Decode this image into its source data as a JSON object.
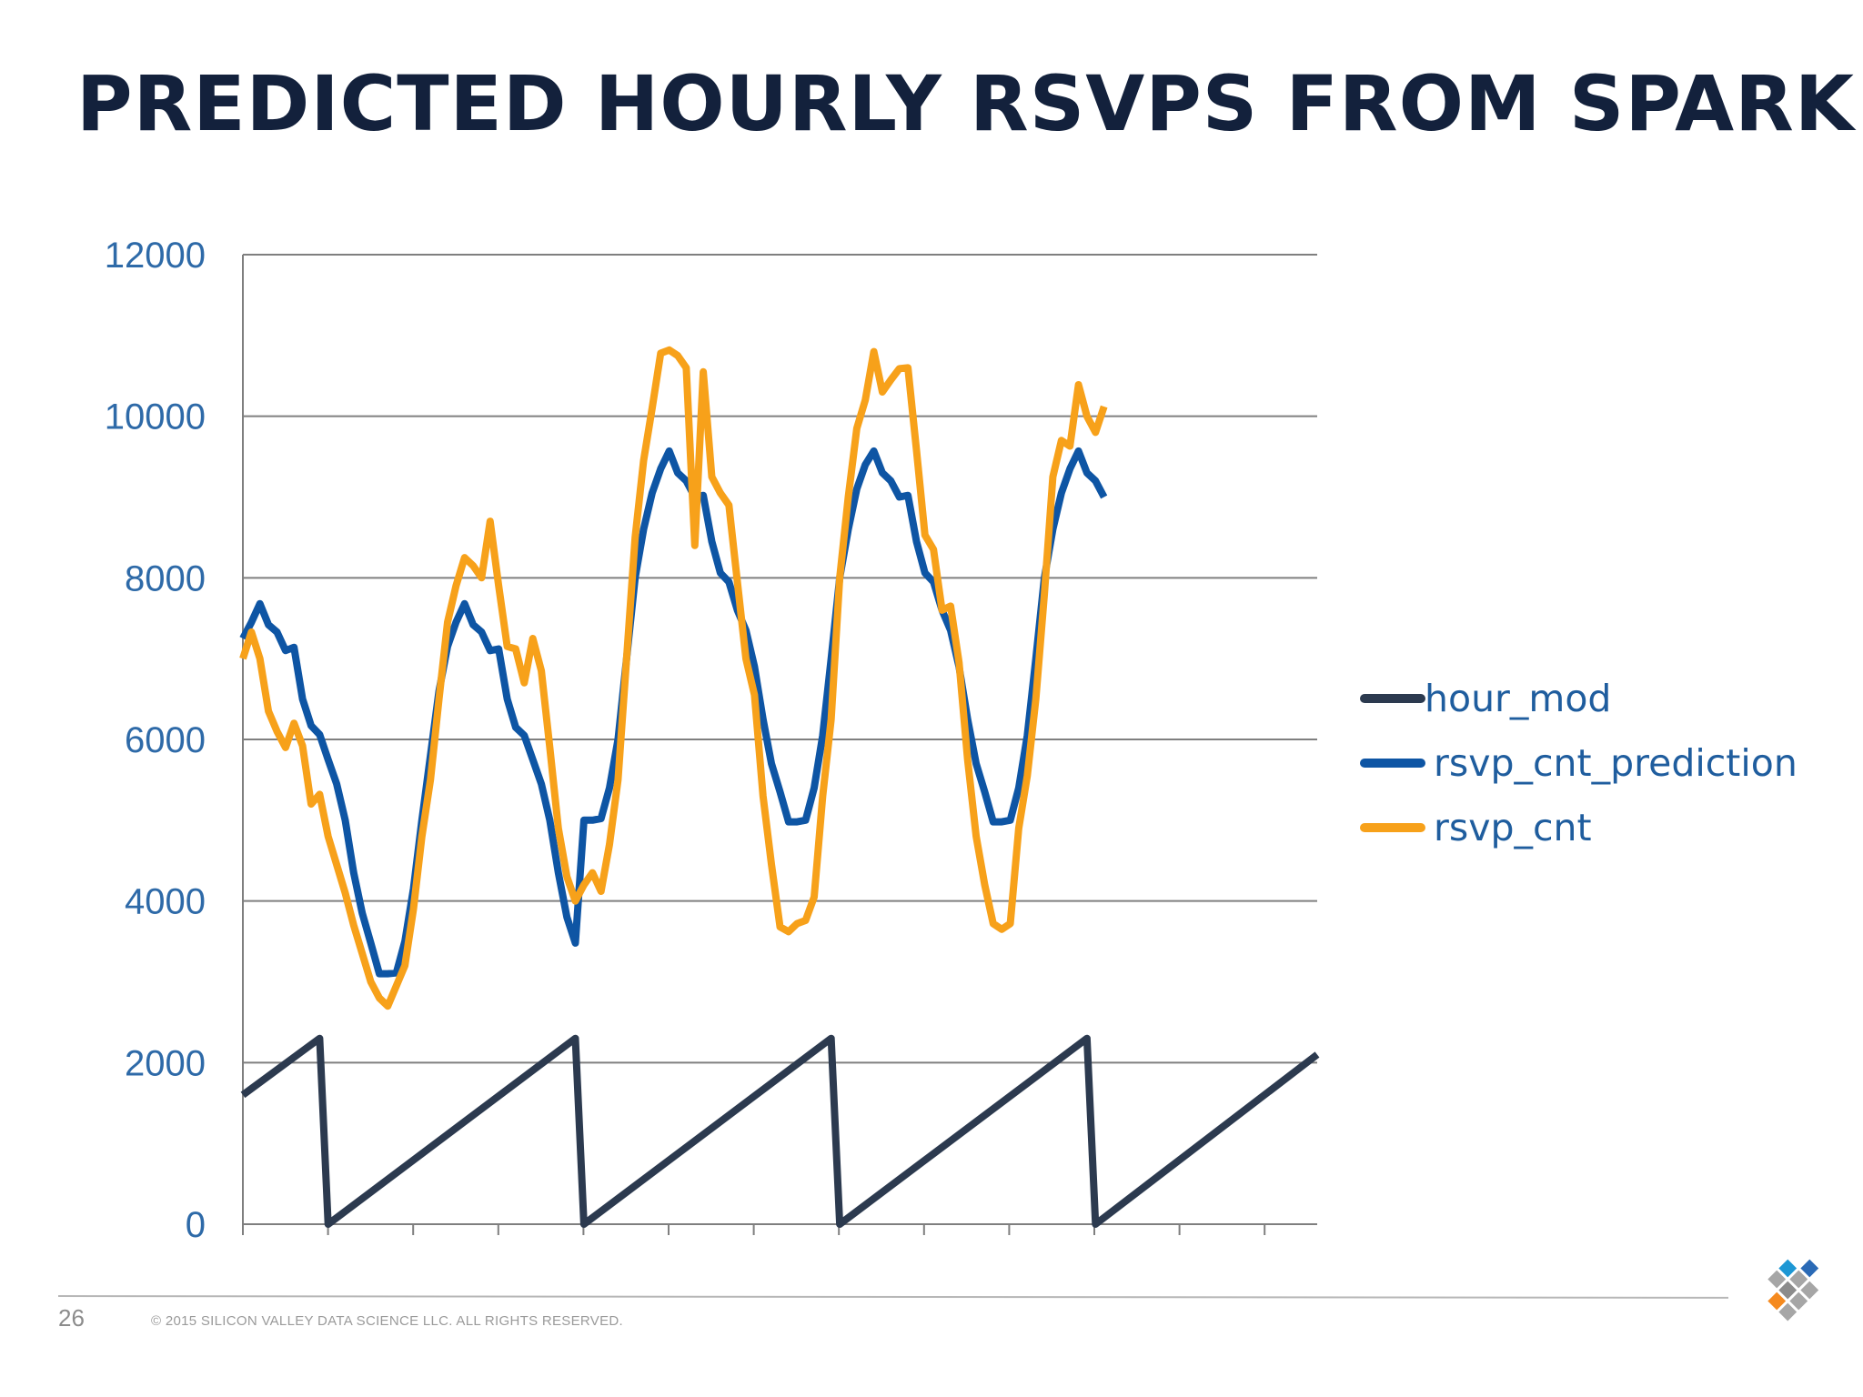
{
  "slide": {
    "title": "PREDICTED HOURLY RSVPS FROM SPARK",
    "page_number": "26",
    "copyright": "© 2015 SILICON VALLEY DATA SCIENCE LLC. ALL RIGHTS RESERVED.",
    "logo_icon": "svds-diamond-logo-icon"
  },
  "chart_data": {
    "type": "line",
    "title": "",
    "xlabel": "",
    "ylabel": "",
    "ylim": [
      0,
      12000
    ],
    "yticks": [
      "0",
      "2000",
      "4000",
      "6000",
      "8000",
      "10000",
      "12000"
    ],
    "xlim": [
      0,
      126
    ],
    "xtick_count": 13,
    "grid": "horizontal",
    "legend_position": "right",
    "series": [
      {
        "name": "hour_mod",
        "color": "#2c3a4f",
        "points": [
          [
            0,
            1600
          ],
          [
            9,
            2300
          ],
          [
            10,
            0
          ],
          [
            39,
            2300
          ],
          [
            40,
            0
          ],
          [
            69,
            2300
          ],
          [
            70,
            0
          ],
          [
            99,
            2300
          ],
          [
            100,
            0
          ],
          [
            126,
            2100
          ]
        ]
      },
      {
        "name": "rsvp_cnt_prediction",
        "color": "#0e55a4",
        "points": [
          [
            0,
            7250
          ],
          [
            1,
            7450
          ],
          [
            2,
            7680
          ],
          [
            3,
            7420
          ],
          [
            4,
            7330
          ],
          [
            5,
            7100
          ],
          [
            6,
            7140
          ],
          [
            7,
            6500
          ],
          [
            8,
            6170
          ],
          [
            9,
            6060
          ],
          [
            10,
            5750
          ],
          [
            11,
            5450
          ],
          [
            12,
            5000
          ],
          [
            13,
            4350
          ],
          [
            14,
            3850
          ],
          [
            15,
            3480
          ],
          [
            16,
            3100
          ],
          [
            17,
            3100
          ],
          [
            18,
            3110
          ],
          [
            19,
            3500
          ],
          [
            20,
            4150
          ],
          [
            21,
            5000
          ],
          [
            22,
            5800
          ],
          [
            23,
            6600
          ],
          [
            24,
            7150
          ],
          [
            25,
            7450
          ],
          [
            26,
            7680
          ],
          [
            27,
            7420
          ],
          [
            28,
            7330
          ],
          [
            29,
            7100
          ],
          [
            30,
            7120
          ],
          [
            31,
            6500
          ],
          [
            32,
            6150
          ],
          [
            33,
            6050
          ],
          [
            34,
            5750
          ],
          [
            35,
            5450
          ],
          [
            36,
            5000
          ],
          [
            37,
            4350
          ],
          [
            38,
            3800
          ],
          [
            39,
            3480
          ],
          [
            40,
            5000
          ],
          [
            41,
            5000
          ],
          [
            42,
            5020
          ],
          [
            43,
            5400
          ],
          [
            44,
            6000
          ],
          [
            45,
            7000
          ],
          [
            46,
            8000
          ],
          [
            47,
            8600
          ],
          [
            48,
            9050
          ],
          [
            49,
            9350
          ],
          [
            50,
            9570
          ],
          [
            51,
            9300
          ],
          [
            52,
            9200
          ],
          [
            53,
            9000
          ],
          [
            54,
            9020
          ],
          [
            55,
            8450
          ],
          [
            56,
            8060
          ],
          [
            57,
            7950
          ],
          [
            58,
            7600
          ],
          [
            59,
            7350
          ],
          [
            60,
            6900
          ],
          [
            61,
            6250
          ],
          [
            62,
            5700
          ],
          [
            63,
            5350
          ],
          [
            64,
            4980
          ],
          [
            65,
            4980
          ],
          [
            66,
            5000
          ],
          [
            67,
            5400
          ],
          [
            68,
            6050
          ],
          [
            69,
            7000
          ],
          [
            70,
            8000
          ],
          [
            71,
            8600
          ],
          [
            72,
            9100
          ],
          [
            73,
            9400
          ],
          [
            74,
            9570
          ],
          [
            75,
            9300
          ],
          [
            76,
            9200
          ],
          [
            77,
            9000
          ],
          [
            78,
            9020
          ],
          [
            79,
            8450
          ],
          [
            80,
            8060
          ],
          [
            81,
            7950
          ],
          [
            82,
            7600
          ],
          [
            83,
            7350
          ],
          [
            84,
            6900
          ],
          [
            85,
            6250
          ],
          [
            86,
            5700
          ],
          [
            87,
            5350
          ],
          [
            88,
            4980
          ],
          [
            89,
            4980
          ],
          [
            90,
            5000
          ],
          [
            91,
            5400
          ],
          [
            92,
            6050
          ],
          [
            93,
            7000
          ],
          [
            94,
            8000
          ],
          [
            95,
            8600
          ],
          [
            96,
            9050
          ],
          [
            97,
            9350
          ],
          [
            98,
            9570
          ],
          [
            99,
            9300
          ],
          [
            100,
            9200
          ],
          [
            101,
            9000
          ]
        ]
      },
      {
        "name": "rsvp_cnt",
        "color": "#f7a11a",
        "points": [
          [
            0,
            7000
          ],
          [
            1,
            7330
          ],
          [
            2,
            7000
          ],
          [
            3,
            6350
          ],
          [
            4,
            6100
          ],
          [
            5,
            5900
          ],
          [
            6,
            6200
          ],
          [
            7,
            5920
          ],
          [
            8,
            5200
          ],
          [
            9,
            5320
          ],
          [
            10,
            4800
          ],
          [
            11,
            4450
          ],
          [
            12,
            4100
          ],
          [
            13,
            3700
          ],
          [
            14,
            3350
          ],
          [
            15,
            3000
          ],
          [
            16,
            2800
          ],
          [
            17,
            2700
          ],
          [
            18,
            2950
          ],
          [
            19,
            3200
          ],
          [
            20,
            3900
          ],
          [
            21,
            4800
          ],
          [
            22,
            5500
          ],
          [
            23,
            6500
          ],
          [
            24,
            7450
          ],
          [
            25,
            7900
          ],
          [
            26,
            8250
          ],
          [
            27,
            8150
          ],
          [
            28,
            8000
          ],
          [
            29,
            8700
          ],
          [
            30,
            7900
          ],
          [
            31,
            7150
          ],
          [
            32,
            7120
          ],
          [
            33,
            6700
          ],
          [
            34,
            7250
          ],
          [
            35,
            6850
          ],
          [
            36,
            5900
          ],
          [
            37,
            4900
          ],
          [
            38,
            4300
          ],
          [
            39,
            4000
          ],
          [
            40,
            4200
          ],
          [
            41,
            4350
          ],
          [
            42,
            4120
          ],
          [
            43,
            4700
          ],
          [
            44,
            5500
          ],
          [
            45,
            7000
          ],
          [
            46,
            8500
          ],
          [
            47,
            9450
          ],
          [
            48,
            10100
          ],
          [
            49,
            10780
          ],
          [
            50,
            10820
          ],
          [
            51,
            10750
          ],
          [
            52,
            10600
          ],
          [
            53,
            8400
          ],
          [
            54,
            10550
          ],
          [
            55,
            9250
          ],
          [
            56,
            9050
          ],
          [
            57,
            8900
          ],
          [
            58,
            7950
          ],
          [
            59,
            7000
          ],
          [
            60,
            6550
          ],
          [
            61,
            5300
          ],
          [
            62,
            4450
          ],
          [
            63,
            3680
          ],
          [
            64,
            3620
          ],
          [
            65,
            3720
          ],
          [
            66,
            3760
          ],
          [
            67,
            4050
          ],
          [
            68,
            5300
          ],
          [
            69,
            6250
          ],
          [
            70,
            8000
          ],
          [
            71,
            9000
          ],
          [
            72,
            9850
          ],
          [
            73,
            10200
          ],
          [
            74,
            10800
          ],
          [
            75,
            10300
          ],
          [
            76,
            10450
          ],
          [
            77,
            10590
          ],
          [
            78,
            10600
          ],
          [
            79,
            9580
          ],
          [
            80,
            8530
          ],
          [
            81,
            8350
          ],
          [
            82,
            7600
          ],
          [
            83,
            7650
          ],
          [
            84,
            6950
          ],
          [
            85,
            5750
          ],
          [
            86,
            4800
          ],
          [
            87,
            4200
          ],
          [
            88,
            3720
          ],
          [
            89,
            3650
          ],
          [
            90,
            3720
          ],
          [
            91,
            4900
          ],
          [
            92,
            5550
          ],
          [
            93,
            6500
          ],
          [
            94,
            7800
          ],
          [
            95,
            9250
          ],
          [
            96,
            9700
          ],
          [
            97,
            9630
          ],
          [
            98,
            10390
          ],
          [
            99,
            10000
          ],
          [
            100,
            9800
          ],
          [
            101,
            10120
          ]
        ]
      }
    ]
  }
}
